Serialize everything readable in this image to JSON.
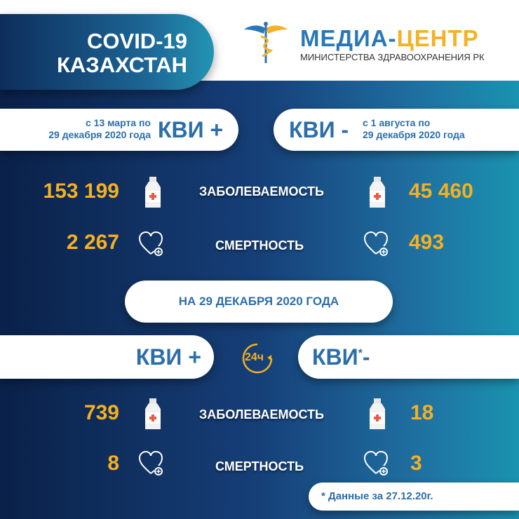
{
  "header": {
    "title_line1": "COVID-19",
    "title_line2": "КАЗАХСТАН"
  },
  "logo": {
    "name_part1": "МЕДИА-",
    "name_part2": "ЦЕНТР",
    "subtitle": "МИНИСТЕРСТВА ЗДРАВООХРАНЕНИЯ РК",
    "icon": "caduceus-icon"
  },
  "colors": {
    "accent_blue": "#2b6ea8",
    "number_orange": "#f5b022",
    "bg_dark": "#0a2149",
    "bg_teal": "#1a93b0"
  },
  "cumulative": {
    "positive": {
      "label": "КВИ +",
      "period_line1": "с 13 марта по",
      "period_line2": "29 декабря 2020 года",
      "cases": "153 199",
      "deaths": "2 267"
    },
    "negative": {
      "label": "КВИ -",
      "period_line1": "с 1 августа  по",
      "period_line2": "29 декабря 2020 года",
      "cases": "45 460",
      "deaths": "493"
    },
    "cases_label": "ЗАБОЛЕВАЕМОСТЬ",
    "deaths_label": "СМЕРТНОСТЬ"
  },
  "daily": {
    "date_label": "НА 29 ДЕКАБРЯ  2020 ГОДА",
    "badge": "24ч",
    "positive": {
      "label": "КВИ +",
      "cases": "739",
      "deaths": "8"
    },
    "negative": {
      "label": "КВИ",
      "asterisk": "*",
      "suffix": "-",
      "cases": "18",
      "deaths": "3"
    },
    "cases_label": "ЗАБОЛЕВАЕМОСТЬ",
    "deaths_label": "СМЕРТНОСТЬ",
    "footnote": "* Данные за 27.12.20г."
  }
}
